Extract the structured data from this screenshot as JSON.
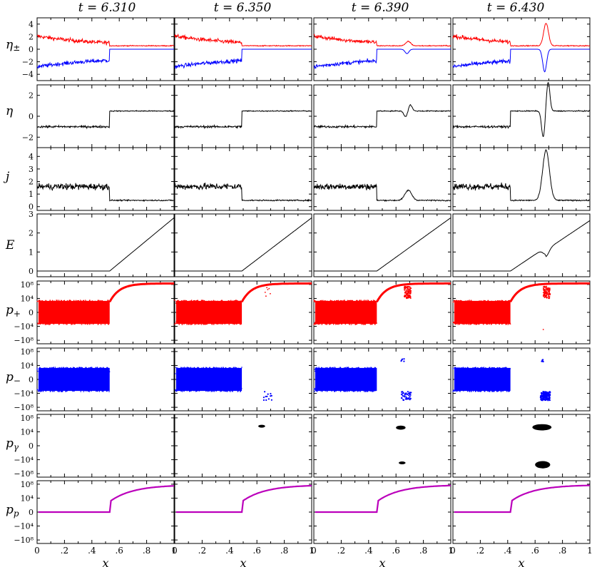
{
  "figure": {
    "times": [
      "t = 6.310",
      "t = 6.350",
      "t = 6.390",
      "t = 6.430"
    ],
    "xlabel": "x",
    "xticks": [
      "0",
      ".2",
      ".4",
      ".6",
      ".8",
      "1"
    ]
  },
  "colors": {
    "positron": "#ff0000",
    "electron": "#0000ff",
    "black": "#000000",
    "proton": "#bb00bb"
  },
  "chart_data": [
    {
      "type": "line",
      "row": "eta_pm",
      "ylabel": "η±",
      "yticks": [
        "4",
        "2",
        "0",
        "−2",
        "−4"
      ],
      "ytick_values": [
        4,
        2,
        0,
        -2,
        -4
      ],
      "ylim": [
        -5,
        5
      ],
      "xlim": [
        0,
        1
      ],
      "series": [
        {
          "name": "η+",
          "color": "positron"
        },
        {
          "name": "η−",
          "color": "electron"
        }
      ],
      "panels": [
        {
          "t": "6.310",
          "front": 0.53
        },
        {
          "t": "6.350",
          "front": 0.49
        },
        {
          "t": "6.390",
          "front": 0.46,
          "pulse_x": 0.69,
          "pulse_amp": 0.7
        },
        {
          "t": "6.430",
          "front": 0.42,
          "pulse_x": 0.68,
          "pulse_amp": 3.6
        }
      ]
    },
    {
      "type": "line",
      "row": "eta",
      "ylabel": "η",
      "yticks": [
        "2",
        "0",
        "−2"
      ],
      "ytick_values": [
        2,
        0,
        -2
      ],
      "ylim": [
        -3,
        3
      ],
      "xlim": [
        0,
        1
      ],
      "levels": {
        "left": -1.0,
        "right": 0.5
      },
      "panels": [
        {
          "t": "6.310",
          "front": 0.53
        },
        {
          "t": "6.350",
          "front": 0.49
        },
        {
          "t": "6.390",
          "front": 0.46,
          "pulse_x": 0.69,
          "pulse_amp": 0.6
        },
        {
          "t": "6.430",
          "front": 0.42,
          "pulse_x": 0.68,
          "pulse_amp": 2.8
        }
      ]
    },
    {
      "type": "line",
      "row": "j",
      "ylabel": "j",
      "yticks": [
        "4",
        "3",
        "2",
        "1",
        "0"
      ],
      "ytick_values": [
        4,
        3,
        2,
        1,
        0
      ],
      "ylim": [
        -0.3,
        4.7
      ],
      "xlim": [
        0,
        1
      ],
      "levels": {
        "left": 1.6,
        "right": 0.5
      },
      "panels": [
        {
          "t": "6.310",
          "front": 0.53
        },
        {
          "t": "6.350",
          "front": 0.49
        },
        {
          "t": "6.390",
          "front": 0.46,
          "pulse_x": 0.69,
          "pulse_amp": 0.8
        },
        {
          "t": "6.430",
          "front": 0.42,
          "pulse_x": 0.68,
          "pulse_amp": 4.0
        }
      ]
    },
    {
      "type": "line",
      "row": "E",
      "ylabel": "E",
      "yticks": [
        "3",
        "2",
        "1",
        "0"
      ],
      "ytick_values": [
        3,
        2,
        1,
        0
      ],
      "ylim": [
        -0.3,
        3.0
      ],
      "xlim": [
        0,
        1
      ],
      "panels": [
        {
          "t": "6.310",
          "front": 0.53,
          "end": 2.8
        },
        {
          "t": "6.350",
          "front": 0.49,
          "end": 2.8
        },
        {
          "t": "6.390",
          "front": 0.46,
          "end": 2.8
        },
        {
          "t": "6.430",
          "front": 0.42,
          "end": 2.8,
          "kink_x": 0.68
        }
      ]
    },
    {
      "type": "scatter",
      "row": "p_plus",
      "ylabel": "p+",
      "color": "positron",
      "yticks": [
        "10⁸",
        "10⁴",
        "0",
        "−10⁴",
        "−10⁸"
      ],
      "yscale": "symlog",
      "ylim": [
        -1000000000.0,
        1000000000.0
      ],
      "xlim": [
        0,
        1
      ],
      "panels": [
        {
          "t": "6.310",
          "front": 0.53
        },
        {
          "t": "6.350",
          "front": 0.49
        },
        {
          "t": "6.390",
          "front": 0.46
        },
        {
          "t": "6.430",
          "front": 0.42
        }
      ]
    },
    {
      "type": "scatter",
      "row": "p_minus",
      "ylabel": "p−",
      "color": "electron",
      "yticks": [
        "10⁸",
        "10⁴",
        "0",
        "−10⁴",
        "−10⁸"
      ],
      "yscale": "symlog",
      "ylim": [
        -1000000000.0,
        1000000000.0
      ],
      "xlim": [
        0,
        1
      ],
      "panels": [
        {
          "t": "6.310",
          "front": 0.53
        },
        {
          "t": "6.350",
          "front": 0.49
        },
        {
          "t": "6.390",
          "front": 0.46
        },
        {
          "t": "6.430",
          "front": 0.42
        }
      ]
    },
    {
      "type": "scatter",
      "row": "p_gamma",
      "ylabel": "pγ",
      "color": "black",
      "yticks": [
        "10⁸",
        "10⁴",
        "0",
        "−10⁴",
        "−10⁸"
      ],
      "yscale": "symlog",
      "ylim": [
        -1000000000.0,
        1000000000.0
      ],
      "xlim": [
        0,
        1
      ],
      "panels": [
        {
          "t": "6.310"
        },
        {
          "t": "6.350"
        },
        {
          "t": "6.390"
        },
        {
          "t": "6.430"
        }
      ]
    },
    {
      "type": "scatter",
      "row": "p_p",
      "ylabel": "pp",
      "color": "proton",
      "yticks": [
        "10⁸",
        "10⁴",
        "0",
        "−10⁴",
        "−10⁸"
      ],
      "yscale": "symlog",
      "ylim": [
        -1000000000.0,
        1000000000.0
      ],
      "xlim": [
        0,
        1
      ],
      "panels": [
        {
          "t": "6.310",
          "front": 0.53
        },
        {
          "t": "6.350",
          "front": 0.49
        },
        {
          "t": "6.390",
          "front": 0.46
        },
        {
          "t": "6.430",
          "front": 0.42
        }
      ]
    }
  ]
}
